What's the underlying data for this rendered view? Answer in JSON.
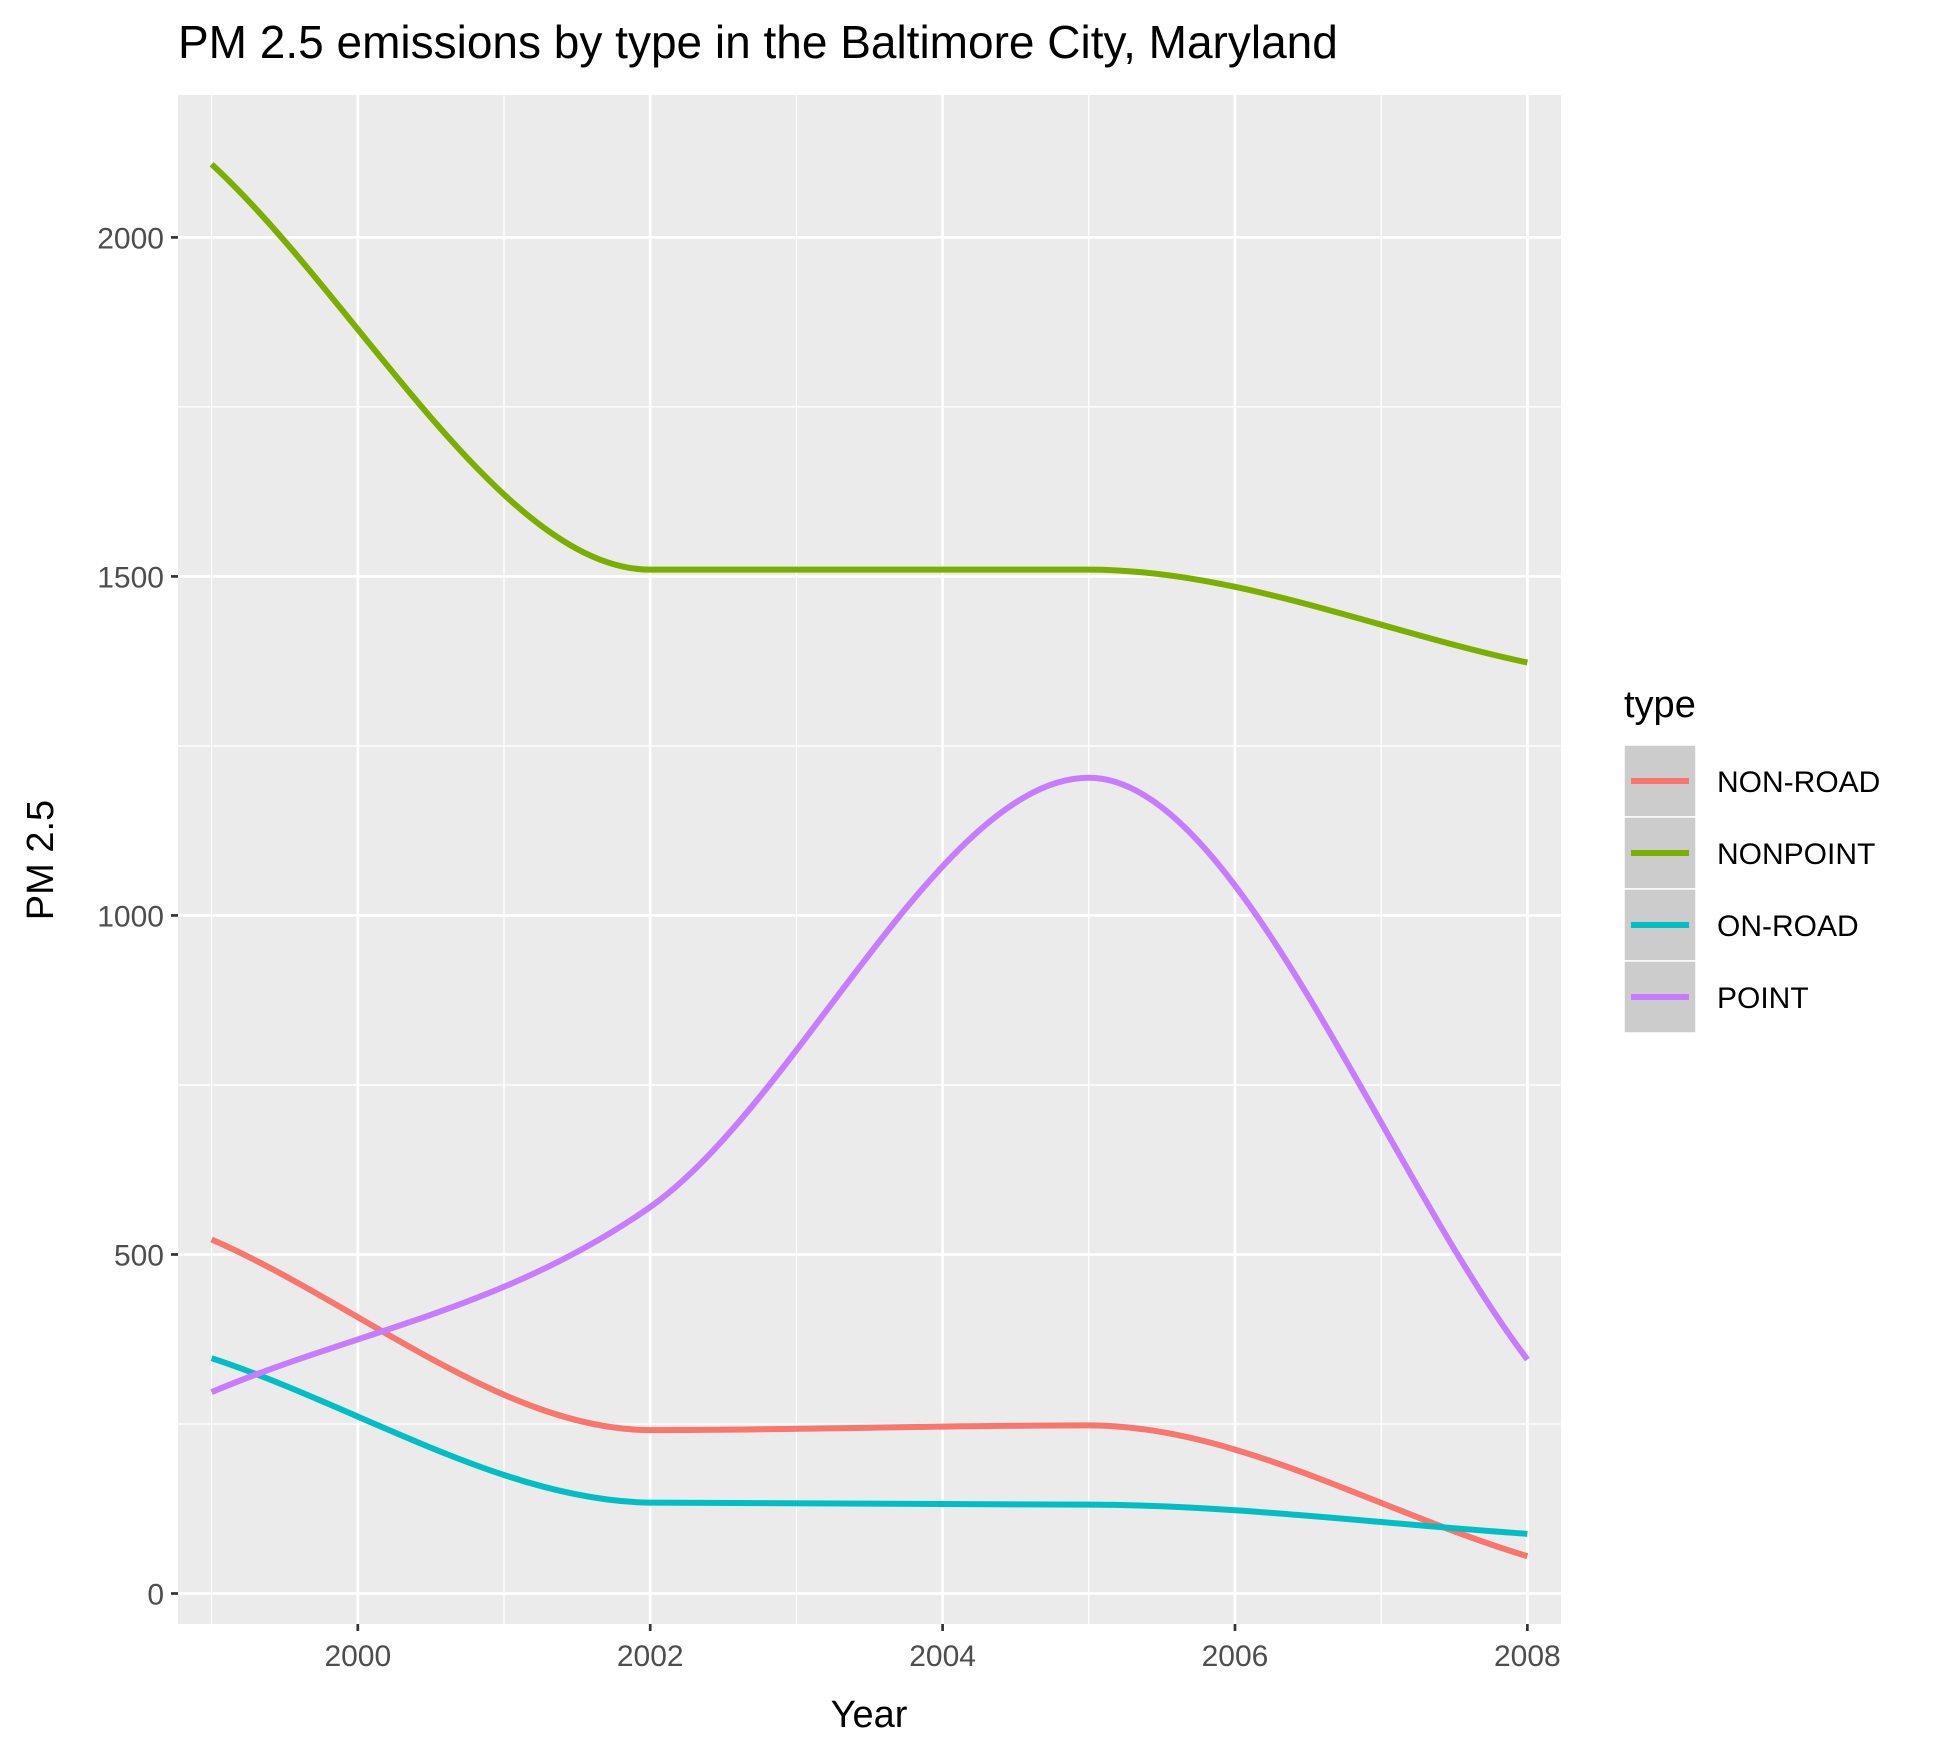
{
  "chart_data": {
    "type": "line",
    "title": "PM 2.5 emissions by type in the Baltimore City, Maryland",
    "xlabel": "Year",
    "ylabel": "PM 2.5",
    "xlim": [
      1998.77,
      2008.23
    ],
    "ylim": [
      -45,
      2210
    ],
    "x_ticks": [
      2000,
      2002,
      2004,
      2006,
      2008
    ],
    "y_ticks": [
      0,
      500,
      1000,
      1500,
      2000
    ],
    "x_tick_labels": [
      "2000",
      "2002",
      "2004",
      "2006",
      "2008"
    ],
    "y_tick_labels": [
      "0",
      "500",
      "1000",
      "1500",
      "2000"
    ],
    "grid": true,
    "smoothed": true,
    "legend": {
      "title": "type",
      "position": "right"
    },
    "x": [
      1999,
      2002,
      2005,
      2008
    ],
    "series": [
      {
        "name": "NON-ROAD",
        "color": "#F8766D",
        "values": [
          522,
          241,
          248,
          55
        ]
      },
      {
        "name": "NONPOINT",
        "color": "#7CAE00",
        "values": [
          2108,
          1510,
          1510,
          1373
        ]
      },
      {
        "name": "ON-ROAD",
        "color": "#00BFC4",
        "values": [
          347,
          134,
          131,
          88
        ]
      },
      {
        "name": "POINT",
        "color": "#C77CFF",
        "values": [
          297,
          570,
          1203,
          345
        ]
      }
    ]
  }
}
